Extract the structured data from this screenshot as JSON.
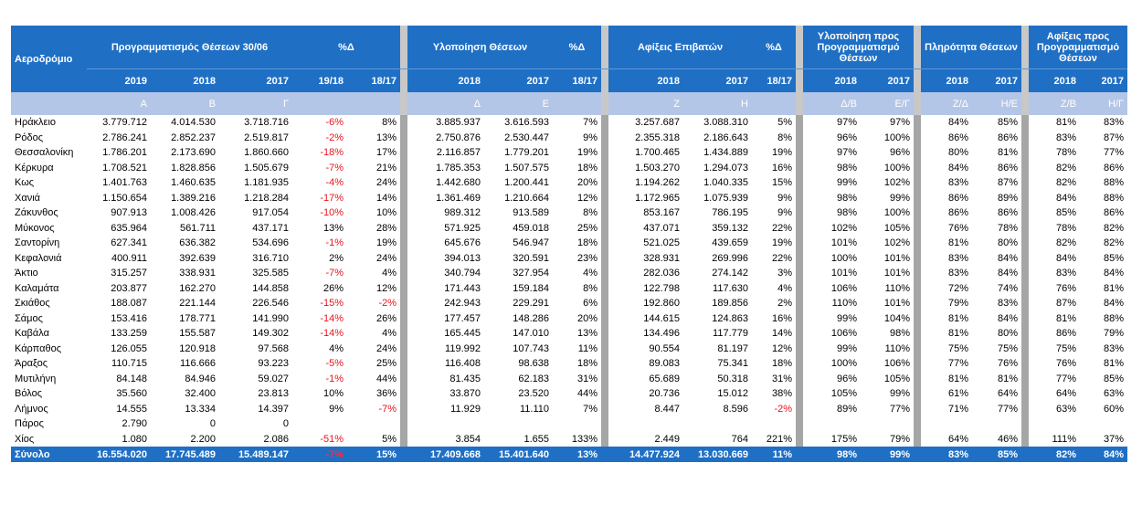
{
  "table": {
    "header": {
      "airport": "Αεροδρόμιο",
      "groups": [
        "Προγραμματισμός Θέσεων 30/06",
        "%Δ",
        "Υλοποίηση Θέσεων",
        "%Δ",
        "Αφίξεις Επιβατών",
        "%Δ",
        "Υλοποίηση προς Προγραμματισμό Θέσεων",
        "Πληρότητα Θέσεων",
        "Αφίξεις προς Προγραμματισμό Θέσεων"
      ],
      "years": [
        "2019",
        "2018",
        "2017",
        "19/18",
        "18/17",
        "2018",
        "2017",
        "18/17",
        "2018",
        "2017",
        "18/17",
        "2018",
        "2017",
        "2018",
        "2017",
        "2018",
        "2017"
      ],
      "letters": [
        "Α",
        "Β",
        "Γ",
        null,
        null,
        "Δ",
        "Ε",
        null,
        "Ζ",
        "Η",
        null,
        "Δ/Β",
        "Ε/Γ",
        "Ζ/Δ",
        "Η/Ε",
        "Ζ/Β",
        "Η/Γ"
      ]
    },
    "rows": [
      [
        "Ηράκλειο",
        "3.779.712",
        "4.014.530",
        "3.718.716",
        "-6%",
        "8%",
        "3.885.937",
        "3.616.593",
        "7%",
        "3.257.687",
        "3.088.310",
        "5%",
        "97%",
        "97%",
        "84%",
        "85%",
        "81%",
        "83%"
      ],
      [
        "Ρόδος",
        "2.786.241",
        "2.852.237",
        "2.519.817",
        "-2%",
        "13%",
        "2.750.876",
        "2.530.447",
        "9%",
        "2.355.318",
        "2.186.643",
        "8%",
        "96%",
        "100%",
        "86%",
        "86%",
        "83%",
        "87%"
      ],
      [
        "Θεσσαλονίκη",
        "1.786.201",
        "2.173.690",
        "1.860.660",
        "-18%",
        "17%",
        "2.116.857",
        "1.779.201",
        "19%",
        "1.700.465",
        "1.434.889",
        "19%",
        "97%",
        "96%",
        "80%",
        "81%",
        "78%",
        "77%"
      ],
      [
        "Κέρκυρα",
        "1.708.521",
        "1.828.856",
        "1.505.679",
        "-7%",
        "21%",
        "1.785.353",
        "1.507.575",
        "18%",
        "1.503.270",
        "1.294.073",
        "16%",
        "98%",
        "100%",
        "84%",
        "86%",
        "82%",
        "86%"
      ],
      [
        "Κως",
        "1.401.763",
        "1.460.635",
        "1.181.935",
        "-4%",
        "24%",
        "1.442.680",
        "1.200.441",
        "20%",
        "1.194.262",
        "1.040.335",
        "15%",
        "99%",
        "102%",
        "83%",
        "87%",
        "82%",
        "88%"
      ],
      [
        "Χανιά",
        "1.150.654",
        "1.389.216",
        "1.218.284",
        "-17%",
        "14%",
        "1.361.469",
        "1.210.664",
        "12%",
        "1.172.965",
        "1.075.939",
        "9%",
        "98%",
        "99%",
        "86%",
        "89%",
        "84%",
        "88%"
      ],
      [
        "Ζάκυνθος",
        "907.913",
        "1.008.426",
        "917.054",
        "-10%",
        "10%",
        "989.312",
        "913.589",
        "8%",
        "853.167",
        "786.195",
        "9%",
        "98%",
        "100%",
        "86%",
        "86%",
        "85%",
        "86%"
      ],
      [
        "Μύκονος",
        "635.964",
        "561.711",
        "437.171",
        "13%",
        "28%",
        "571.925",
        "459.018",
        "25%",
        "437.071",
        "359.132",
        "22%",
        "102%",
        "105%",
        "76%",
        "78%",
        "78%",
        "82%"
      ],
      [
        "Σαντορίνη",
        "627.341",
        "636.382",
        "534.696",
        "-1%",
        "19%",
        "645.676",
        "546.947",
        "18%",
        "521.025",
        "439.659",
        "19%",
        "101%",
        "102%",
        "81%",
        "80%",
        "82%",
        "82%"
      ],
      [
        "Κεφαλονιά",
        "400.911",
        "392.639",
        "316.710",
        "2%",
        "24%",
        "394.013",
        "320.591",
        "23%",
        "328.931",
        "269.996",
        "22%",
        "100%",
        "101%",
        "83%",
        "84%",
        "84%",
        "85%"
      ],
      [
        "Άκτιο",
        "315.257",
        "338.931",
        "325.585",
        "-7%",
        "4%",
        "340.794",
        "327.954",
        "4%",
        "282.036",
        "274.142",
        "3%",
        "101%",
        "101%",
        "83%",
        "84%",
        "83%",
        "84%"
      ],
      [
        "Καλαμάτα",
        "203.877",
        "162.270",
        "144.858",
        "26%",
        "12%",
        "171.443",
        "159.184",
        "8%",
        "122.798",
        "117.630",
        "4%",
        "106%",
        "110%",
        "72%",
        "74%",
        "76%",
        "81%"
      ],
      [
        "Σκιάθος",
        "188.087",
        "221.144",
        "226.546",
        "-15%",
        "-2%",
        "242.943",
        "229.291",
        "6%",
        "192.860",
        "189.856",
        "2%",
        "110%",
        "101%",
        "79%",
        "83%",
        "87%",
        "84%"
      ],
      [
        "Σάμος",
        "153.416",
        "178.771",
        "141.990",
        "-14%",
        "26%",
        "177.457",
        "148.286",
        "20%",
        "144.615",
        "124.863",
        "16%",
        "99%",
        "104%",
        "81%",
        "84%",
        "81%",
        "88%"
      ],
      [
        "Καβάλα",
        "133.259",
        "155.587",
        "149.302",
        "-14%",
        "4%",
        "165.445",
        "147.010",
        "13%",
        "134.496",
        "117.779",
        "14%",
        "106%",
        "98%",
        "81%",
        "80%",
        "86%",
        "79%"
      ],
      [
        "Κάρπαθος",
        "126.055",
        "120.918",
        "97.568",
        "4%",
        "24%",
        "119.992",
        "107.743",
        "11%",
        "90.554",
        "81.197",
        "12%",
        "99%",
        "110%",
        "75%",
        "75%",
        "75%",
        "83%"
      ],
      [
        "Άραξος",
        "110.715",
        "116.666",
        "93.223",
        "-5%",
        "25%",
        "116.408",
        "98.638",
        "18%",
        "89.083",
        "75.341",
        "18%",
        "100%",
        "106%",
        "77%",
        "76%",
        "76%",
        "81%"
      ],
      [
        "Μυτιλήνη",
        "84.148",
        "84.946",
        "59.027",
        "-1%",
        "44%",
        "81.435",
        "62.183",
        "31%",
        "65.689",
        "50.318",
        "31%",
        "96%",
        "105%",
        "81%",
        "81%",
        "77%",
        "85%"
      ],
      [
        "Βόλος",
        "35.560",
        "32.400",
        "23.813",
        "10%",
        "36%",
        "33.870",
        "23.520",
        "44%",
        "20.736",
        "15.012",
        "38%",
        "105%",
        "99%",
        "61%",
        "64%",
        "64%",
        "63%"
      ],
      [
        "Λήμνος",
        "14.555",
        "13.334",
        "14.397",
        "9%",
        "-7%",
        "11.929",
        "11.110",
        "7%",
        "8.447",
        "8.596",
        "-2%",
        "89%",
        "77%",
        "71%",
        "77%",
        "63%",
        "60%"
      ],
      [
        "Πάρος",
        "2.790",
        "0",
        "0",
        null,
        null,
        null,
        null,
        null,
        null,
        null,
        null,
        null,
        null,
        null,
        null,
        null,
        null
      ],
      [
        "Χίος",
        "1.080",
        "2.200",
        "2.086",
        "-51%",
        "5%",
        "3.854",
        "1.655",
        "133%",
        "2.449",
        "764",
        "221%",
        "175%",
        "79%",
        "64%",
        "46%",
        "111%",
        "37%"
      ]
    ],
    "total": [
      "Σύνολο",
      "16.554.020",
      "17.745.489",
      "15.489.147",
      "-7%",
      "15%",
      "17.409.668",
      "15.401.640",
      "13%",
      "14.477.924",
      "13.030.669",
      "11%",
      "98%",
      "99%",
      "83%",
      "85%",
      "82%",
      "84%"
    ]
  }
}
